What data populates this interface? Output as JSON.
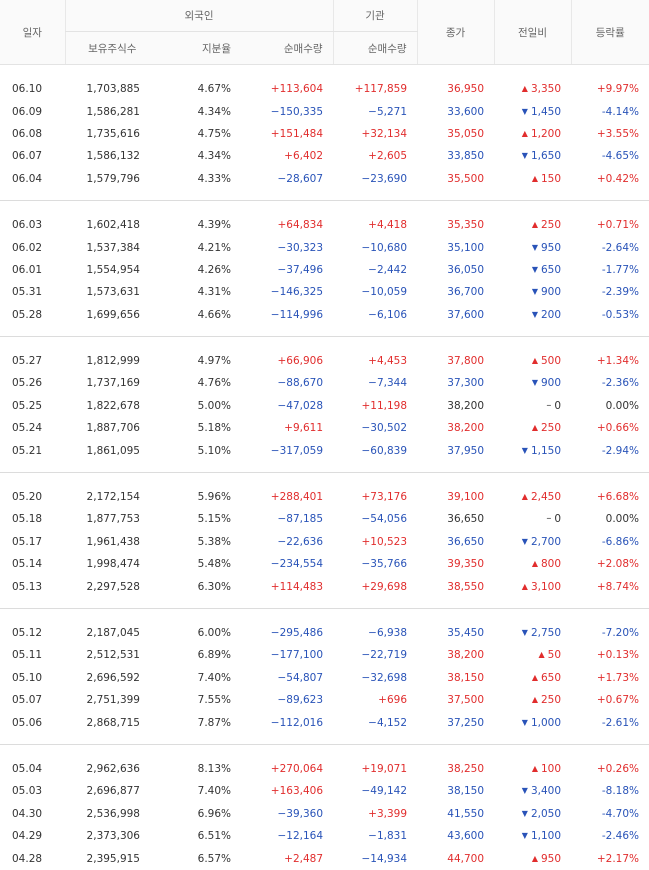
{
  "header": {
    "date": "일자",
    "foreign": "외국인",
    "institution": "기관",
    "close": "종가",
    "change": "전일비",
    "rate": "등락률",
    "holdings": "보유주식수",
    "ratio": "지분율",
    "foreign_net": "순매수량",
    "inst_net": "순매수량"
  },
  "colors": {
    "up": "#e12d2d",
    "down": "#2953b8",
    "flat": "#333333"
  },
  "groups": [
    {
      "rows": [
        {
          "date": "06.10",
          "holdings": "1,703,885",
          "ratio": "4.67%",
          "foreign_net": "+113,604",
          "inst_net": "+117,859",
          "close": "36,950",
          "dir": "up",
          "change": "3,350",
          "rate": "+9.97%"
        },
        {
          "date": "06.09",
          "holdings": "1,586,281",
          "ratio": "4.34%",
          "foreign_net": "−150,335",
          "inst_net": "−5,271",
          "close": "33,600",
          "dir": "down",
          "change": "1,450",
          "rate": "-4.14%"
        },
        {
          "date": "06.08",
          "holdings": "1,735,616",
          "ratio": "4.75%",
          "foreign_net": "+151,484",
          "inst_net": "+32,134",
          "close": "35,050",
          "dir": "up",
          "change": "1,200",
          "rate": "+3.55%"
        },
        {
          "date": "06.07",
          "holdings": "1,586,132",
          "ratio": "4.34%",
          "foreign_net": "+6,402",
          "inst_net": "+2,605",
          "close": "33,850",
          "dir": "down",
          "change": "1,650",
          "rate": "-4.65%"
        },
        {
          "date": "06.04",
          "holdings": "1,579,796",
          "ratio": "4.33%",
          "foreign_net": "−28,607",
          "inst_net": "−23,690",
          "close": "35,500",
          "dir": "up",
          "change": "150",
          "rate": "+0.42%"
        }
      ]
    },
    {
      "rows": [
        {
          "date": "06.03",
          "holdings": "1,602,418",
          "ratio": "4.39%",
          "foreign_net": "+64,834",
          "inst_net": "+4,418",
          "close": "35,350",
          "dir": "up",
          "change": "250",
          "rate": "+0.71%"
        },
        {
          "date": "06.02",
          "holdings": "1,537,384",
          "ratio": "4.21%",
          "foreign_net": "−30,323",
          "inst_net": "−10,680",
          "close": "35,100",
          "dir": "down",
          "change": "950",
          "rate": "-2.64%"
        },
        {
          "date": "06.01",
          "holdings": "1,554,954",
          "ratio": "4.26%",
          "foreign_net": "−37,496",
          "inst_net": "−2,442",
          "close": "36,050",
          "dir": "down",
          "change": "650",
          "rate": "-1.77%"
        },
        {
          "date": "05.31",
          "holdings": "1,573,631",
          "ratio": "4.31%",
          "foreign_net": "−146,325",
          "inst_net": "−10,059",
          "close": "36,700",
          "dir": "down",
          "change": "900",
          "rate": "-2.39%"
        },
        {
          "date": "05.28",
          "holdings": "1,699,656",
          "ratio": "4.66%",
          "foreign_net": "−114,996",
          "inst_net": "−6,106",
          "close": "37,600",
          "dir": "down",
          "change": "200",
          "rate": "-0.53%"
        }
      ]
    },
    {
      "rows": [
        {
          "date": "05.27",
          "holdings": "1,812,999",
          "ratio": "4.97%",
          "foreign_net": "+66,906",
          "inst_net": "+4,453",
          "close": "37,800",
          "dir": "up",
          "change": "500",
          "rate": "+1.34%"
        },
        {
          "date": "05.26",
          "holdings": "1,737,169",
          "ratio": "4.76%",
          "foreign_net": "−88,670",
          "inst_net": "−7,344",
          "close": "37,300",
          "dir": "down",
          "change": "900",
          "rate": "-2.36%"
        },
        {
          "date": "05.25",
          "holdings": "1,822,678",
          "ratio": "5.00%",
          "foreign_net": "−47,028",
          "inst_net": "+11,198",
          "close": "38,200",
          "dir": "flat",
          "change": "0",
          "rate": "0.00%"
        },
        {
          "date": "05.24",
          "holdings": "1,887,706",
          "ratio": "5.18%",
          "foreign_net": "+9,611",
          "inst_net": "−30,502",
          "close": "38,200",
          "dir": "up",
          "change": "250",
          "rate": "+0.66%"
        },
        {
          "date": "05.21",
          "holdings": "1,861,095",
          "ratio": "5.10%",
          "foreign_net": "−317,059",
          "inst_net": "−60,839",
          "close": "37,950",
          "dir": "down",
          "change": "1,150",
          "rate": "-2.94%"
        }
      ]
    },
    {
      "rows": [
        {
          "date": "05.20",
          "holdings": "2,172,154",
          "ratio": "5.96%",
          "foreign_net": "+288,401",
          "inst_net": "+73,176",
          "close": "39,100",
          "dir": "up",
          "change": "2,450",
          "rate": "+6.68%"
        },
        {
          "date": "05.18",
          "holdings": "1,877,753",
          "ratio": "5.15%",
          "foreign_net": "−87,185",
          "inst_net": "−54,056",
          "close": "36,650",
          "dir": "flat",
          "change": "0",
          "rate": "0.00%"
        },
        {
          "date": "05.17",
          "holdings": "1,961,438",
          "ratio": "5.38%",
          "foreign_net": "−22,636",
          "inst_net": "+10,523",
          "close": "36,650",
          "dir": "down",
          "change": "2,700",
          "rate": "-6.86%"
        },
        {
          "date": "05.14",
          "holdings": "1,998,474",
          "ratio": "5.48%",
          "foreign_net": "−234,554",
          "inst_net": "−35,766",
          "close": "39,350",
          "dir": "up",
          "change": "800",
          "rate": "+2.08%"
        },
        {
          "date": "05.13",
          "holdings": "2,297,528",
          "ratio": "6.30%",
          "foreign_net": "+114,483",
          "inst_net": "+29,698",
          "close": "38,550",
          "dir": "up",
          "change": "3,100",
          "rate": "+8.74%"
        }
      ]
    },
    {
      "rows": [
        {
          "date": "05.12",
          "holdings": "2,187,045",
          "ratio": "6.00%",
          "foreign_net": "−295,486",
          "inst_net": "−6,938",
          "close": "35,450",
          "dir": "down",
          "change": "2,750",
          "rate": "-7.20%"
        },
        {
          "date": "05.11",
          "holdings": "2,512,531",
          "ratio": "6.89%",
          "foreign_net": "−177,100",
          "inst_net": "−22,719",
          "close": "38,200",
          "dir": "up",
          "change": "50",
          "rate": "+0.13%"
        },
        {
          "date": "05.10",
          "holdings": "2,696,592",
          "ratio": "7.40%",
          "foreign_net": "−54,807",
          "inst_net": "−32,698",
          "close": "38,150",
          "dir": "up",
          "change": "650",
          "rate": "+1.73%"
        },
        {
          "date": "05.07",
          "holdings": "2,751,399",
          "ratio": "7.55%",
          "foreign_net": "−89,623",
          "inst_net": "+696",
          "close": "37,500",
          "dir": "up",
          "change": "250",
          "rate": "+0.67%"
        },
        {
          "date": "05.06",
          "holdings": "2,868,715",
          "ratio": "7.87%",
          "foreign_net": "−112,016",
          "inst_net": "−4,152",
          "close": "37,250",
          "dir": "down",
          "change": "1,000",
          "rate": "-2.61%"
        }
      ]
    },
    {
      "rows": [
        {
          "date": "05.04",
          "holdings": "2,962,636",
          "ratio": "8.13%",
          "foreign_net": "+270,064",
          "inst_net": "+19,071",
          "close": "38,250",
          "dir": "up",
          "change": "100",
          "rate": "+0.26%"
        },
        {
          "date": "05.03",
          "holdings": "2,696,877",
          "ratio": "7.40%",
          "foreign_net": "+163,406",
          "inst_net": "−49,142",
          "close": "38,150",
          "dir": "down",
          "change": "3,400",
          "rate": "-8.18%"
        },
        {
          "date": "04.30",
          "holdings": "2,536,998",
          "ratio": "6.96%",
          "foreign_net": "−39,360",
          "inst_net": "+3,399",
          "close": "41,550",
          "dir": "down",
          "change": "2,050",
          "rate": "-4.70%"
        },
        {
          "date": "04.29",
          "holdings": "2,373,306",
          "ratio": "6.51%",
          "foreign_net": "−12,164",
          "inst_net": "−1,831",
          "close": "43,600",
          "dir": "down",
          "change": "1,100",
          "rate": "-2.46%"
        },
        {
          "date": "04.28",
          "holdings": "2,395,915",
          "ratio": "6.57%",
          "foreign_net": "+2,487",
          "inst_net": "−14,934",
          "close": "44,700",
          "dir": "up",
          "change": "950",
          "rate": "+2.17%"
        }
      ]
    }
  ]
}
